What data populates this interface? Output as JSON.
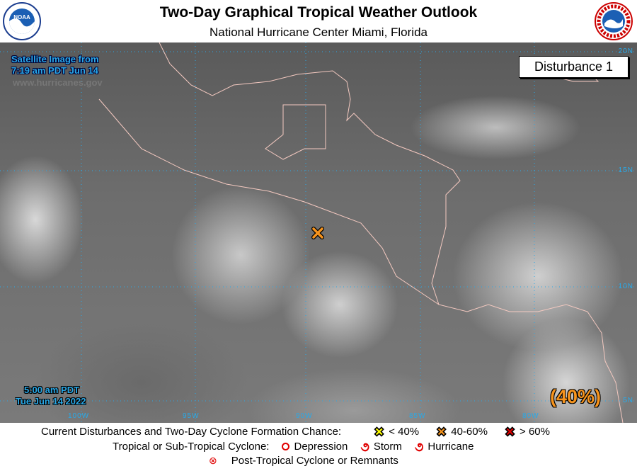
{
  "header": {
    "title": "Two-Day Graphical Tropical Weather Outlook",
    "subtitle": "National Hurricane Center  Miami, Florida",
    "left_logo": "NOAA",
    "right_logo": "National Weather Service"
  },
  "map": {
    "satellite_label_line1": "Satellite Image from",
    "satellite_label_line2": "7:19 am PDT Jun 14",
    "website": "www.hurricanes.gov",
    "timestamp_line1": "5:00 am PDT",
    "timestamp_line2": "Tue Jun 14 2022",
    "disturbance_label": "Disturbance 1",
    "disturbance_chance": "(40%)",
    "disturbance_marker_color": "#f7941d",
    "longitude_labels": [
      "100W",
      "95W",
      "90W",
      "85W",
      "80W"
    ],
    "latitude_labels": [
      "20N",
      "15N",
      "10N",
      "5N"
    ],
    "grid_color": "#29a9e8",
    "coastline_color": "#f4c9c0"
  },
  "legend": {
    "formation_title": "Current Disturbances and Two-Day Cyclone Formation Chance:",
    "low": "< 40%",
    "medium": "40-60%",
    "high": "> 60%",
    "low_color": "#ffff00",
    "medium_color": "#f7941d",
    "high_color": "#e00000",
    "cyclone_title": "Tropical or Sub-Tropical Cyclone:",
    "depression": "Depression",
    "storm": "Storm",
    "hurricane": "Hurricane",
    "post_tropical": "Post-Tropical Cyclone or Remnants"
  }
}
